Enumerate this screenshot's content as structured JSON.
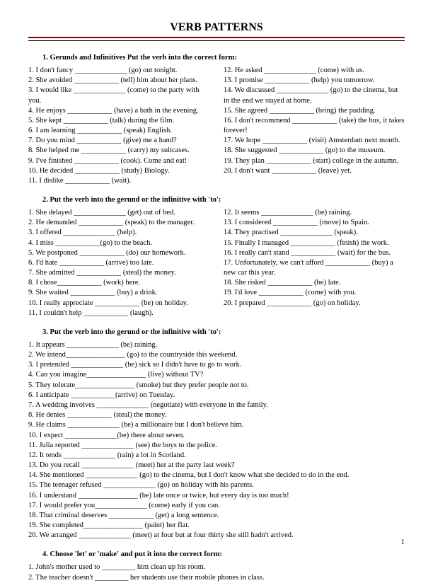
{
  "title": "VERB PATTERNS",
  "page_number": "1",
  "sections": [
    {
      "header": "1.   Gerunds and Infinitives  Put the verb into the correct form:",
      "layout": "two-col",
      "left": [
        "1.  I don't fancy ______________ (go) out tonight.",
        "2.  She avoided ____________ (tell) him about her plans.",
        "3.  I would like ______________ (come) to the party with you.",
        "4.  He enjoys ____________ (have) a bath in the evening.",
        "5.  She kept ____________ (talk) during the film.",
        "6.  I am learning ____________ (speak) English.",
        "7.  Do you mind ____________ (give) me a hand?",
        "8.  She helped me ____________ (carry) my suitcases.",
        "9.  I've finished ____________ (cook). Come and eat!",
        "10. He decided ____________ (study) Biology.",
        "11. I dislike ____________ (wait)."
      ],
      "right": [
        "12. He asked ______________ (come) with us.",
        "13. I promise ____________ (help) you tomorrow.",
        "14. We discussed ______________ (go) to the cinema, but in the end we stayed at home.",
        "15. She agreed ____________ (bring) the pudding.",
        "16. I don't recommend ____________ (take) the bus, it takes forever!",
        "17. We hope ____________ (visit) Amsterdam next month.",
        "18. She suggested ____________ (go) to the museum.",
        "19. They plan ____________ (start) college in the autumn.",
        "20. I don't want ____________ (leave) yet."
      ]
    },
    {
      "header": "2.   Put the verb into the gerund or the infinitive with 'to':",
      "layout": "two-col",
      "left": [
        "1.  She delayed ______________ (get) out of bed.",
        "2.  He demanded ____________ (speak) to the manager.",
        "3.  I offered ______________ (help).",
        "4.  I miss ____________(go) to the beach.",
        "5.  We postponed ____________ (do) our homework.",
        "6.  I'd hate ____________ (arrive) too late.",
        "7.  She admitted ____________ (steal) the money.",
        "8.  I chose____________ (work) here.",
        "9.  She waited ____________ (buy) a drink.",
        "10. I really appreciate ____________ (be) on holiday.",
        "11. I couldn't help ____________ (laugh)."
      ],
      "right": [
        "12. It seems ______________ (be) raining.",
        "13. I considered ____________ (move) to Spain.",
        "14. They practised ______________ (speak).",
        "15. Finally I managed ____________ (finish) the work.",
        "16. I really can't stand ____________ (wait) for the bus.",
        "17. Unfortunately, we can't afford ____________ (buy) a new car this year.",
        "18. She risked ____________ (be) late.",
        "19. I'd love ____________ (come) with you.",
        "20. I prepared ____________ (go) on holiday."
      ]
    },
    {
      "header": "3.   Put the verb into the gerund or the infinitive with 'to':",
      "layout": "full",
      "items": [
        "1.  It appears ______________ (be) raining.",
        "2.  We intend________________ (go) to the countryside this weekend.",
        "3.  I pretended ______________ (be) sick so I didn't have to go to work.",
        "4.  Can you imagine________________ (live) without TV?",
        "5.  They tolerate________________ (smoke) but they prefer people not to.",
        "6.  I anticipate ____________(arrive) on Tuesday.",
        "7.  A wedding involves ______________ (negotiate) with everyone in the  family.",
        "8.  He denies ____________ (steal) the money.",
        "9.  He claims ______________ (be) a millionaire but I don't believe him.",
        "10. I expect ______________(be) there about seven.",
        "11. Julia reported ______________ (see) the boys to the police.",
        "12. It tends ______________ (rain) a lot in Scotland.",
        "13. Do you recall ______________ (meet) her at the party last week?",
        "14. She mentioned ______________ (go) to the cinema, but I don't know  what she decided to do in the end.",
        "15. The teenager refused ______________ (go) on holiday with his parents.",
        "16. I understand ________________ (be) late once or twice, but every day is too  much!",
        "17. I would prefer you______________ (come) early if you can.",
        "18. That criminal deserves ____________ (get) a long sentence.",
        "19. She completed________________ (paint) her flat.",
        "20. We arranged ______________ (meet) at four but at four thirty she still hadn't arrived."
      ]
    },
    {
      "header": "4.   Choose 'let' or 'make' and put it into the correct form:",
      "layout": "full",
      "items": [
        "1.  John's mother used to _________ him clean up his room.",
        "2.  The teacher doesn't _________ her students use their mobile phones in class."
      ]
    }
  ]
}
